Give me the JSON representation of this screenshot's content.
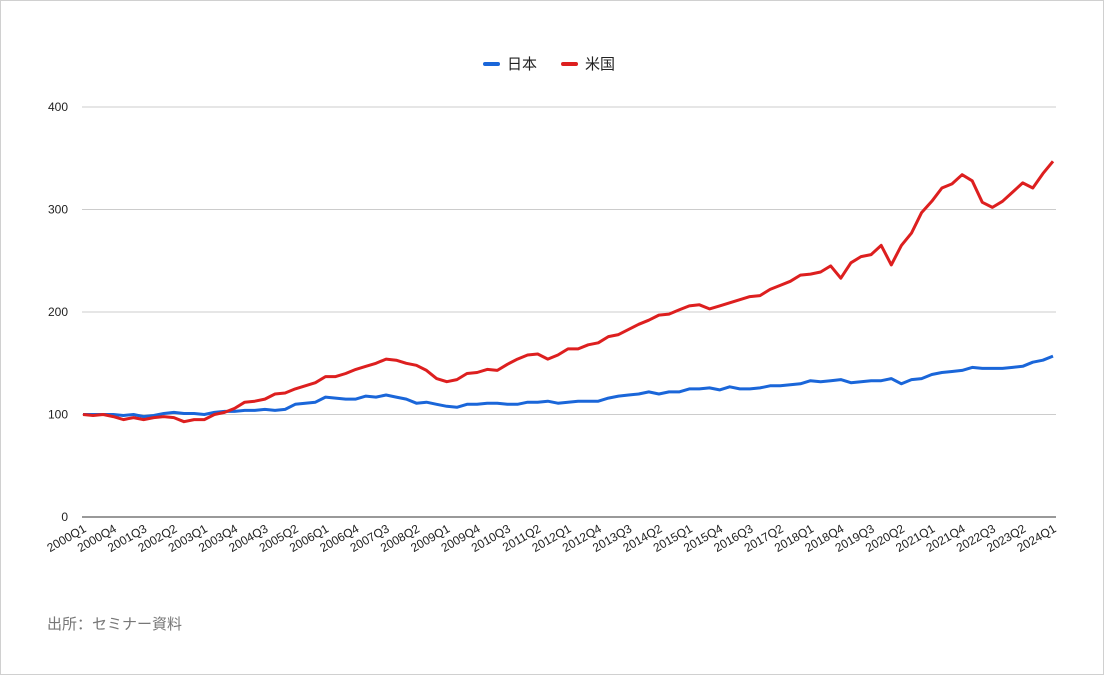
{
  "chart_data": {
    "type": "line",
    "source": "出所：セミナー資料",
    "categories": [
      "2000Q1",
      null,
      null,
      "2000Q4",
      null,
      null,
      "2001Q3",
      null,
      null,
      "2002Q2",
      null,
      null,
      "2003Q1",
      null,
      null,
      "2003Q4",
      null,
      null,
      "2004Q3",
      null,
      null,
      "2005Q2",
      null,
      null,
      "2006Q1",
      null,
      null,
      "2006Q4",
      null,
      null,
      "2007Q3",
      null,
      null,
      "2008Q2",
      null,
      null,
      "2009Q1",
      null,
      null,
      "2009Q4",
      null,
      null,
      "2010Q3",
      null,
      null,
      "2011Q2",
      null,
      null,
      "2012Q1",
      null,
      null,
      "2012Q4",
      null,
      null,
      "2013Q3",
      null,
      null,
      "2014Q2",
      null,
      null,
      "2015Q1",
      null,
      null,
      "2015Q4",
      null,
      null,
      "2016Q3",
      null,
      null,
      "2017Q2",
      null,
      null,
      "2018Q1",
      null,
      null,
      "2018Q4",
      null,
      null,
      "2019Q3",
      null,
      null,
      "2020Q2",
      null,
      null,
      "2021Q1",
      null,
      null,
      "2021Q4",
      null,
      null,
      "2022Q3",
      null,
      null,
      "2023Q2",
      null,
      null,
      "2024Q1"
    ],
    "series": [
      {
        "name": "日本",
        "color": "#1a66d9",
        "values": [
          100,
          100,
          100,
          100,
          99,
          100,
          98,
          99,
          101,
          102,
          101,
          101,
          100,
          102,
          103,
          103,
          104,
          104,
          105,
          104,
          105,
          110,
          111,
          112,
          117,
          116,
          115,
          115,
          118,
          117,
          119,
          117,
          115,
          111,
          112,
          110,
          108,
          107,
          110,
          110,
          111,
          111,
          110,
          110,
          112,
          112,
          113,
          111,
          112,
          113,
          113,
          113,
          116,
          118,
          119,
          120,
          122,
          120,
          122,
          122,
          125,
          125,
          126,
          124,
          127,
          125,
          125,
          126,
          128,
          128,
          129,
          130,
          133,
          132,
          133,
          134,
          131,
          132,
          133,
          133,
          135,
          130,
          134,
          135,
          139,
          141,
          142,
          143,
          146,
          145,
          145,
          145,
          146,
          147,
          151,
          153,
          157
        ]
      },
      {
        "name": "米国",
        "color": "#dd1f1f",
        "values": [
          100,
          99,
          100,
          98,
          95,
          97,
          95,
          97,
          98,
          97,
          93,
          95,
          95,
          100,
          102,
          106,
          112,
          113,
          115,
          120,
          121,
          125,
          128,
          131,
          137,
          137,
          140,
          144,
          147,
          150,
          154,
          153,
          150,
          148,
          143,
          135,
          132,
          134,
          140,
          141,
          144,
          143,
          149,
          154,
          158,
          159,
          154,
          158,
          164,
          164,
          168,
          170,
          176,
          178,
          183,
          188,
          192,
          197,
          198,
          202,
          206,
          207,
          203,
          206,
          209,
          212,
          215,
          216,
          222,
          226,
          230,
          236,
          237,
          239,
          245,
          233,
          248,
          254,
          256,
          265,
          246,
          265,
          277,
          297,
          308,
          321,
          325,
          334,
          328,
          307,
          302,
          308,
          317,
          326,
          321,
          335,
          347
        ]
      }
    ],
    "ylim": [
      0,
      400
    ],
    "yticks": [
      0,
      100,
      200,
      300,
      400
    ],
    "grid": true,
    "legend": "top"
  }
}
